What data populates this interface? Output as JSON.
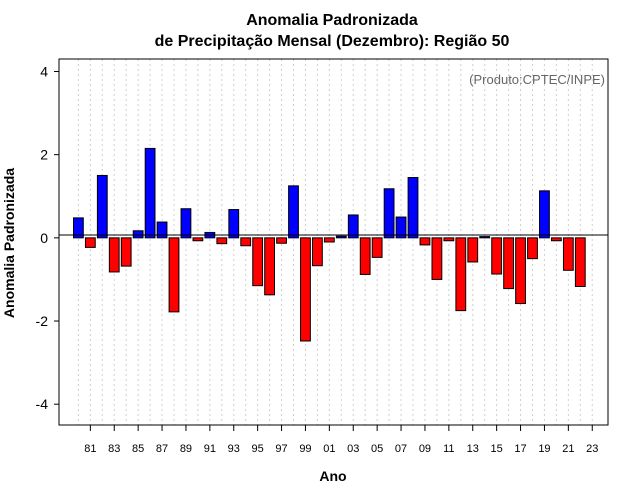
{
  "chart_data": {
    "type": "bar",
    "title_line1": "Anomalia Padronizada",
    "title_line2": "de Precipitação Mensal (Dezembro): Região 50",
    "xlabel": "Ano",
    "ylabel": "Anomalia Padronizada",
    "annotation": "(Produto:CPTEC/INPE)",
    "ylim": [
      -4.5,
      4.3
    ],
    "yticks": [
      -4,
      -2,
      0,
      2,
      4
    ],
    "categories": [
      "1980",
      "1981",
      "1982",
      "1983",
      "1984",
      "1985",
      "1986",
      "1987",
      "1988",
      "1989",
      "1990",
      "1991",
      "1992",
      "1993",
      "1994",
      "1995",
      "1996",
      "1997",
      "1998",
      "1999",
      "2000",
      "2001",
      "2002",
      "2003",
      "2004",
      "2005",
      "2006",
      "2007",
      "2008",
      "2009",
      "2010",
      "2011",
      "2012",
      "2013",
      "2014",
      "2015",
      "2016",
      "2017",
      "2018",
      "2019",
      "2020",
      "2021",
      "2022",
      "2023"
    ],
    "tick_labels": [
      "81",
      "83",
      "85",
      "87",
      "89",
      "91",
      "93",
      "95",
      "97",
      "99",
      "01",
      "03",
      "05",
      "07",
      "09",
      "11",
      "13",
      "15",
      "17",
      "19",
      "21",
      "23"
    ],
    "tick_years": [
      "1981",
      "1983",
      "1985",
      "1987",
      "1989",
      "1991",
      "1993",
      "1995",
      "1997",
      "1999",
      "2001",
      "2003",
      "2005",
      "2007",
      "2009",
      "2011",
      "2013",
      "2015",
      "2017",
      "2019",
      "2021",
      "2023"
    ],
    "values": [
      0.48,
      -0.23,
      1.5,
      -0.82,
      -0.68,
      0.17,
      2.15,
      0.38,
      -1.78,
      0.7,
      -0.07,
      0.13,
      -0.14,
      0.68,
      -0.19,
      -1.15,
      -1.37,
      -0.13,
      1.25,
      -2.48,
      -0.67,
      -0.1,
      0.04,
      0.55,
      -0.88,
      -0.47,
      1.18,
      0.5,
      1.45,
      -0.17,
      -1.0,
      -0.07,
      -1.75,
      -0.58,
      0.03,
      -0.87,
      -1.22,
      -1.58,
      -0.5,
      1.13,
      -0.07,
      -0.78,
      -1.17,
      0
    ],
    "positive_color": "#0000ff",
    "negative_color": "#ff0000",
    "grid": "vertical dotted"
  }
}
